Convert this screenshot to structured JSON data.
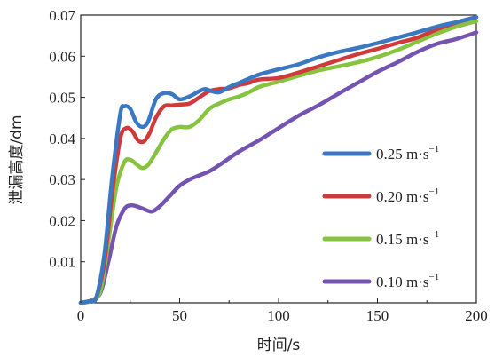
{
  "chart_data": {
    "type": "line",
    "xlabel": "时间/s",
    "ylabel": "泄漏高度/dm",
    "xlim": [
      0,
      200
    ],
    "ylim": [
      0,
      0.07
    ],
    "xticks": [
      "0",
      "50",
      "100",
      "150",
      "200"
    ],
    "yticks": [
      "0.01",
      "0.02",
      "0.03",
      "0.04",
      "0.05",
      "0.06",
      "0.07"
    ],
    "legend_position": "lower-right",
    "grid": false,
    "series": [
      {
        "name": "0.25 m·s⁻¹",
        "label_main": "0.25 m·s",
        "label_sup": "−1",
        "color": "#3a78c2",
        "x": [
          0,
          5,
          8,
          12,
          16,
          20,
          22,
          25,
          28,
          31,
          34,
          38,
          42,
          46,
          50,
          55,
          60,
          63,
          66,
          70,
          75,
          80,
          90,
          100,
          110,
          120,
          130,
          140,
          150,
          160,
          170,
          180,
          190,
          200
        ],
        "y": [
          0,
          0.0005,
          0.0015,
          0.012,
          0.031,
          0.046,
          0.0478,
          0.0472,
          0.044,
          0.0428,
          0.044,
          0.0495,
          0.051,
          0.0508,
          0.0495,
          0.0502,
          0.0515,
          0.052,
          0.0515,
          0.0512,
          0.0525,
          0.0535,
          0.0555,
          0.0568,
          0.058,
          0.0597,
          0.061,
          0.062,
          0.0632,
          0.0645,
          0.0658,
          0.0672,
          0.0683,
          0.0695
        ]
      },
      {
        "name": "0.20 m·s⁻¹",
        "label_main": "0.20 m·s",
        "label_sup": "−1",
        "color": "#d03a3a",
        "x": [
          0,
          5,
          8,
          12,
          16,
          20,
          23,
          26,
          29,
          32,
          35,
          38,
          42,
          46,
          50,
          55,
          60,
          65,
          70,
          75,
          80,
          85,
          90,
          100,
          110,
          120,
          130,
          140,
          150,
          160,
          170,
          180,
          190,
          200
        ],
        "y": [
          0,
          0.0005,
          0.0015,
          0.01,
          0.027,
          0.04,
          0.0425,
          0.0418,
          0.0395,
          0.0393,
          0.0415,
          0.045,
          0.0478,
          0.048,
          0.0482,
          0.0485,
          0.05,
          0.0515,
          0.052,
          0.0522,
          0.053,
          0.0535,
          0.0543,
          0.0547,
          0.056,
          0.0575,
          0.059,
          0.0605,
          0.0618,
          0.0632,
          0.0645,
          0.0665,
          0.0682,
          0.0695
        ]
      },
      {
        "name": "0.15 m·s⁻¹",
        "label_main": "0.15 m·s",
        "label_sup": "−1",
        "color": "#86c440",
        "x": [
          0,
          5,
          10,
          14,
          18,
          22,
          25,
          28,
          31,
          34,
          38,
          42,
          46,
          50,
          55,
          60,
          65,
          70,
          75,
          80,
          85,
          90,
          95,
          100,
          110,
          120,
          130,
          140,
          150,
          160,
          170,
          180,
          190,
          200
        ],
        "y": [
          0,
          0.0005,
          0.003,
          0.015,
          0.028,
          0.0342,
          0.0348,
          0.0338,
          0.0328,
          0.0335,
          0.0365,
          0.0398,
          0.0422,
          0.0428,
          0.0428,
          0.0445,
          0.0472,
          0.0485,
          0.0495,
          0.0502,
          0.0512,
          0.0525,
          0.0532,
          0.0538,
          0.0552,
          0.0565,
          0.0575,
          0.0585,
          0.0598,
          0.0615,
          0.0635,
          0.0655,
          0.0672,
          0.0685
        ]
      },
      {
        "name": "0.10 m·s⁻¹",
        "label_main": "0.10 m·s",
        "label_sup": "−1",
        "color": "#7454b0",
        "x": [
          0,
          5,
          10,
          14,
          18,
          22,
          25,
          28,
          32,
          36,
          40,
          45,
          50,
          55,
          60,
          65,
          70,
          80,
          90,
          100,
          110,
          120,
          130,
          140,
          150,
          160,
          170,
          180,
          190,
          200
        ],
        "y": [
          0,
          0.0005,
          0.0025,
          0.01,
          0.0185,
          0.0228,
          0.0237,
          0.0235,
          0.0228,
          0.0222,
          0.0235,
          0.026,
          0.0285,
          0.03,
          0.031,
          0.032,
          0.0335,
          0.0368,
          0.0395,
          0.0425,
          0.0455,
          0.048,
          0.0508,
          0.0535,
          0.0562,
          0.0585,
          0.061,
          0.063,
          0.0642,
          0.0658
        ]
      }
    ]
  }
}
